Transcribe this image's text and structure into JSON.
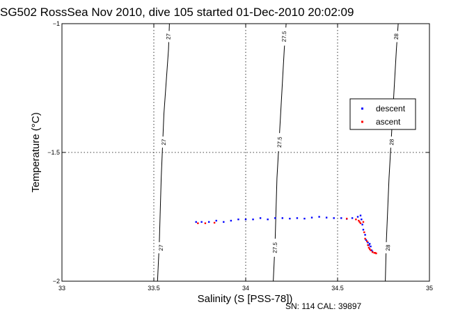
{
  "chart_data": {
    "type": "scatter",
    "title": "SG502 RossSea Nov 2010, dive 105 started 01-Dec-2010 20:02:09",
    "xlabel": "Salinity (S [PSS-78])",
    "ylabel": "Temperature (°C)",
    "xlim": [
      33,
      35
    ],
    "ylim": [
      -2,
      -1
    ],
    "xticks": [
      "33",
      "33.5",
      "34",
      "34.5",
      "35"
    ],
    "yticks": [
      "-1",
      "-1.5",
      "-2"
    ],
    "grid": true,
    "legend_placement": "right",
    "footer": "SN: 114  CAL: 39897",
    "contours": [
      {
        "label": "27",
        "points": [
          [
            33.52,
            -2.0
          ],
          [
            33.53,
            -1.85
          ],
          [
            33.54,
            -1.6
          ],
          [
            33.555,
            -1.35
          ],
          [
            33.58,
            -1.1
          ],
          [
            33.585,
            -1.0
          ]
        ]
      },
      {
        "label": "27.5",
        "points": [
          [
            34.15,
            -2.0
          ],
          [
            34.16,
            -1.85
          ],
          [
            34.17,
            -1.6
          ],
          [
            34.19,
            -1.35
          ],
          [
            34.21,
            -1.1
          ],
          [
            34.22,
            -1.0
          ]
        ]
      },
      {
        "label": "28",
        "points": [
          [
            34.76,
            -2.0
          ],
          [
            34.765,
            -1.85
          ],
          [
            34.78,
            -1.6
          ],
          [
            34.8,
            -1.35
          ],
          [
            34.82,
            -1.1
          ],
          [
            34.83,
            -1.0
          ]
        ]
      }
    ],
    "contour_label_positions": [
      {
        "label": "27",
        "x": 33.58,
        "y": -1.05
      },
      {
        "label": "27",
        "x": 33.555,
        "y": -1.46
      },
      {
        "label": "27",
        "x": 33.54,
        "y": -1.87
      },
      {
        "label": "27.5",
        "x": 34.21,
        "y": -1.05
      },
      {
        "label": "27.5",
        "x": 34.185,
        "y": -1.46
      },
      {
        "label": "27.5",
        "x": 34.16,
        "y": -1.87
      },
      {
        "label": "28",
        "x": 34.82,
        "y": -1.05
      },
      {
        "label": "28",
        "x": 34.795,
        "y": -1.46
      },
      {
        "label": "28",
        "x": 34.775,
        "y": -1.87
      }
    ],
    "series": [
      {
        "name": "descent",
        "color": "#0000ff",
        "points": [
          [
            33.73,
            -1.77
          ],
          [
            33.76,
            -1.77
          ],
          [
            33.8,
            -1.77
          ],
          [
            33.84,
            -1.765
          ],
          [
            33.88,
            -1.77
          ],
          [
            33.92,
            -1.765
          ],
          [
            33.96,
            -1.76
          ],
          [
            34.0,
            -1.76
          ],
          [
            34.04,
            -1.76
          ],
          [
            34.08,
            -1.755
          ],
          [
            34.12,
            -1.76
          ],
          [
            34.16,
            -1.755
          ],
          [
            34.2,
            -1.755
          ],
          [
            34.24,
            -1.757
          ],
          [
            34.28,
            -1.755
          ],
          [
            34.32,
            -1.757
          ],
          [
            34.36,
            -1.753
          ],
          [
            34.4,
            -1.75
          ],
          [
            34.44,
            -1.753
          ],
          [
            34.48,
            -1.755
          ],
          [
            34.52,
            -1.755
          ],
          [
            34.55,
            -1.758
          ],
          [
            34.58,
            -1.755
          ],
          [
            34.61,
            -1.75
          ],
          [
            34.625,
            -1.745
          ],
          [
            34.63,
            -1.76
          ],
          [
            34.635,
            -1.78
          ],
          [
            34.64,
            -1.8
          ],
          [
            34.65,
            -1.82
          ],
          [
            34.655,
            -1.84
          ],
          [
            34.665,
            -1.85
          ],
          [
            34.67,
            -1.86
          ],
          [
            34.675,
            -1.855
          ],
          [
            34.68,
            -1.865
          ],
          [
            34.685,
            -1.88
          ],
          [
            34.69,
            -1.885
          ]
        ]
      },
      {
        "name": "ascent",
        "color": "#ff0000",
        "points": [
          [
            33.74,
            -1.775
          ],
          [
            33.78,
            -1.775
          ],
          [
            33.83,
            -1.773
          ],
          [
            34.55,
            -1.757
          ],
          [
            34.6,
            -1.76
          ],
          [
            34.615,
            -1.765
          ],
          [
            34.62,
            -1.77
          ],
          [
            34.625,
            -1.775
          ],
          [
            34.64,
            -1.77
          ],
          [
            34.645,
            -1.81
          ],
          [
            34.65,
            -1.835
          ],
          [
            34.66,
            -1.845
          ],
          [
            34.665,
            -1.86
          ],
          [
            34.67,
            -1.87
          ],
          [
            34.675,
            -1.875
          ],
          [
            34.68,
            -1.88
          ],
          [
            34.69,
            -1.887
          ],
          [
            34.7,
            -1.89
          ],
          [
            34.705,
            -1.89
          ],
          [
            34.71,
            -1.892
          ]
        ]
      }
    ]
  }
}
